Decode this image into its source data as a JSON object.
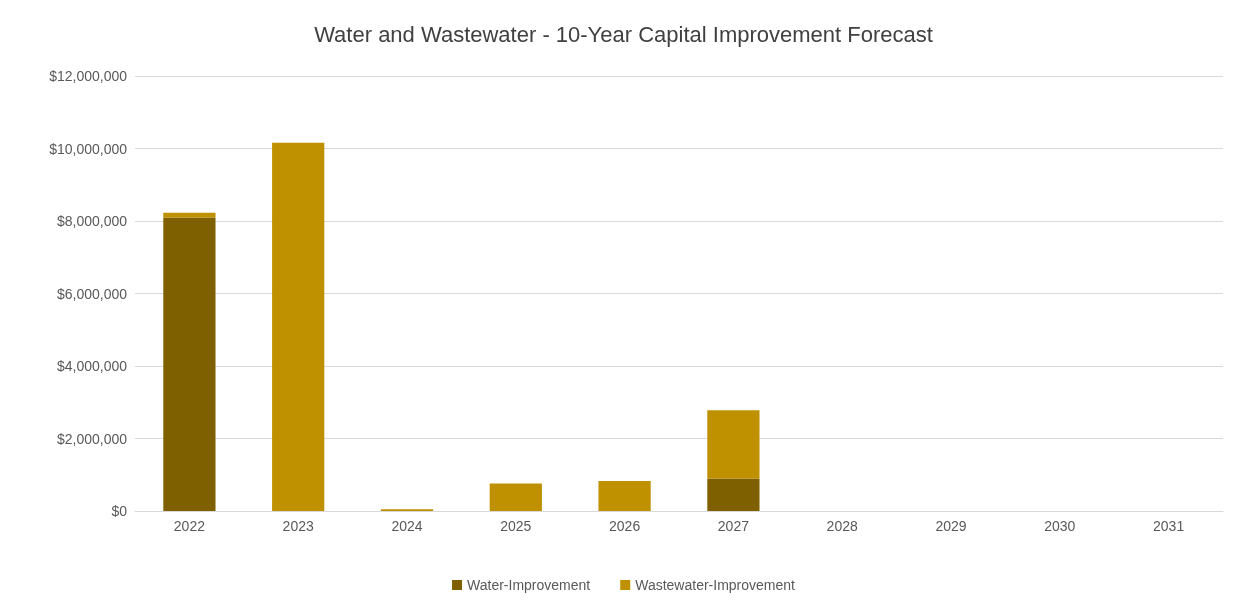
{
  "chart_data": {
    "type": "bar",
    "title": "Water and Wastewater - 10-Year Capital Improvement Forecast",
    "categories": [
      "2022",
      "2023",
      "2024",
      "2025",
      "2026",
      "2027",
      "2028",
      "2029",
      "2030",
      "2031"
    ],
    "stacked": true,
    "series": [
      {
        "name": "Water-Improvement",
        "color": "#7f6000",
        "values": [
          8100000,
          0,
          0,
          0,
          0,
          900000,
          0,
          0,
          0,
          0
        ]
      },
      {
        "name": "Wastewater-Improvement",
        "color": "#bf9000",
        "values": [
          130000,
          10160000,
          50000,
          760000,
          830000,
          1880000,
          0,
          0,
          0,
          0
        ]
      }
    ],
    "ylim": [
      0,
      12000000
    ],
    "yticks": [
      {
        "value": 0,
        "label": "$0"
      },
      {
        "value": 2000000,
        "label": "$2,000,000"
      },
      {
        "value": 4000000,
        "label": "$4,000,000"
      },
      {
        "value": 6000000,
        "label": "$6,000,000"
      },
      {
        "value": 8000000,
        "label": "$8,000,000"
      },
      {
        "value": 10000000,
        "label": "$10,000,000"
      },
      {
        "value": 12000000,
        "label": "$12,000,000"
      }
    ],
    "grid": "y",
    "legend": "bottom"
  }
}
